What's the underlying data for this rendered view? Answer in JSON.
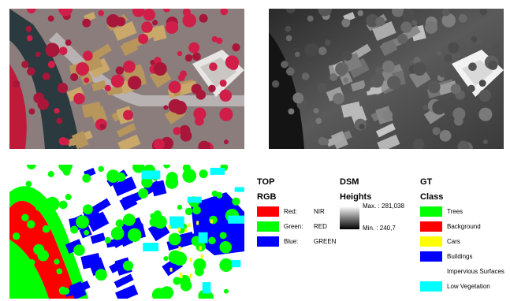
{
  "legend": {
    "top": {
      "title": "TOP",
      "subtitle": "RGB",
      "items": [
        {
          "label": "Red:",
          "value": "NIR",
          "color": "#ff0000"
        },
        {
          "label": "Green:",
          "value": "RED",
          "color": "#00ff00"
        },
        {
          "label": "Blue:",
          "value": "GREEN",
          "color": "#0000ff"
        }
      ]
    },
    "dsm": {
      "title": "DSM",
      "subtitle": "Heights",
      "max_label": "Max. : 281,038",
      "min_label": "Min. : 240,7"
    },
    "gt": {
      "title": "GT",
      "subtitle": "Class",
      "items": [
        {
          "label": "Trees",
          "color": "#00ff00"
        },
        {
          "label": "Background",
          "color": "#ff0000"
        },
        {
          "label": "Cars",
          "color": "#ffff00"
        },
        {
          "label": "Buildings",
          "color": "#0000ff"
        },
        {
          "label": "Impervious Surfaces",
          "color": "#ffffff"
        },
        {
          "label": "Low Vegetation",
          "color": "#00ffff"
        }
      ]
    }
  }
}
